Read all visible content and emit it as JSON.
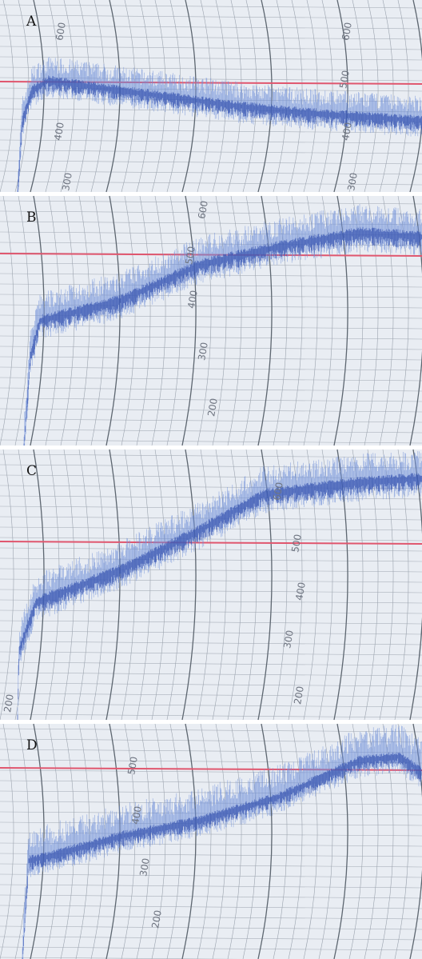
{
  "panels": [
    {
      "label": "A",
      "scale_labels": [
        "600",
        "600",
        "500",
        "400",
        "400",
        "300",
        "300"
      ]
    },
    {
      "label": "B",
      "scale_labels": [
        "600",
        "500",
        "400",
        "300",
        "200"
      ]
    },
    {
      "label": "C",
      "scale_labels": [
        "600",
        "500",
        "400",
        "300",
        "200",
        "200"
      ]
    },
    {
      "label": "D",
      "scale_labels": [
        "500",
        "400",
        "300",
        "200"
      ]
    }
  ]
}
